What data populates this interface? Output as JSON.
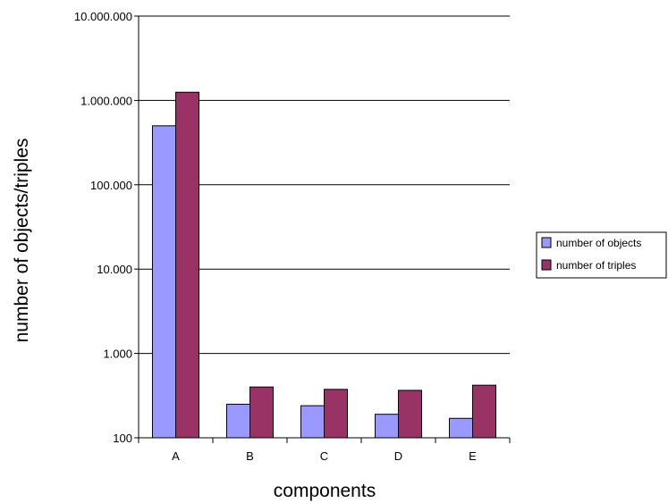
{
  "chart_data": {
    "type": "bar",
    "scale": "log",
    "categories": [
      "A",
      "B",
      "C",
      "D",
      "E"
    ],
    "series": [
      {
        "name": "number of objects",
        "color": "#9999ff",
        "values": [
          500000,
          250,
          240,
          190,
          170
        ]
      },
      {
        "name": "number of triples",
        "color": "#993366",
        "values": [
          1250000,
          400,
          375,
          365,
          420
        ]
      }
    ],
    "xlabel": "components",
    "ylabel": "number of objects/triples",
    "ylim": [
      100,
      10000000
    ],
    "yticks": [
      {
        "value": 100,
        "label": "100"
      },
      {
        "value": 1000,
        "label": "1.000"
      },
      {
        "value": 10000,
        "label": "10.000"
      },
      {
        "value": 100000,
        "label": "100.000"
      },
      {
        "value": 1000000,
        "label": "1.000.000"
      },
      {
        "value": 10000000,
        "label": "10.000.000"
      }
    ],
    "grid": true,
    "legend": "right"
  }
}
